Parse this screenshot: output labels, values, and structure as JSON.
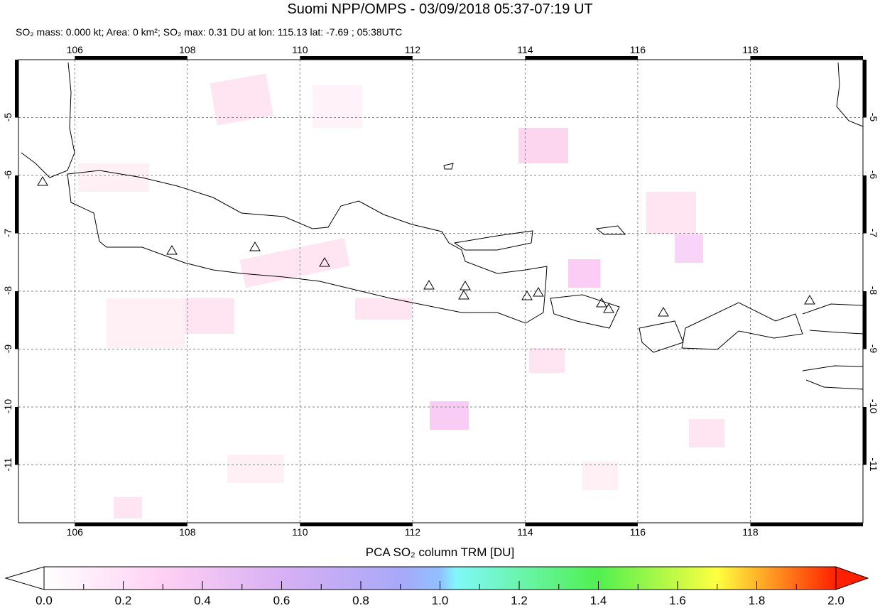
{
  "title": "Suomi NPP/OMPS - 03/09/2018 05:37-07:19 UT",
  "subtitle": {
    "so2_mass": "SO₂ mass: 0.000 kt; Area: 0 km²; SO₂ max: 0.31 DU at lon: 115.13 lat: -7.69 ; 05:38UTC"
  },
  "map": {
    "lon_ticks": [
      "106",
      "108",
      "110",
      "112",
      "114",
      "116",
      "118"
    ],
    "lat_ticks": [
      "-5",
      "-6",
      "-7",
      "-8",
      "-9",
      "-10",
      "-11"
    ],
    "lon_range": [
      105,
      120
    ],
    "lat_range": [
      -12,
      -4
    ],
    "grid": true
  },
  "colorbar": {
    "label": "PCA SO₂ column TRM [DU]",
    "ticks": [
      "0.0",
      "0.2",
      "0.4",
      "0.6",
      "0.8",
      "1.0",
      "1.2",
      "1.4",
      "1.6",
      "1.8",
      "2.0"
    ],
    "range": [
      0,
      2
    ],
    "colors": [
      "#ffffff",
      "#ffd0f0",
      "#e0b0f0",
      "#a0a0f8",
      "#80d0ff",
      "#80ffff",
      "#60f080",
      "#40e040",
      "#ffff40",
      "#ffa020",
      "#ff2000"
    ]
  }
}
